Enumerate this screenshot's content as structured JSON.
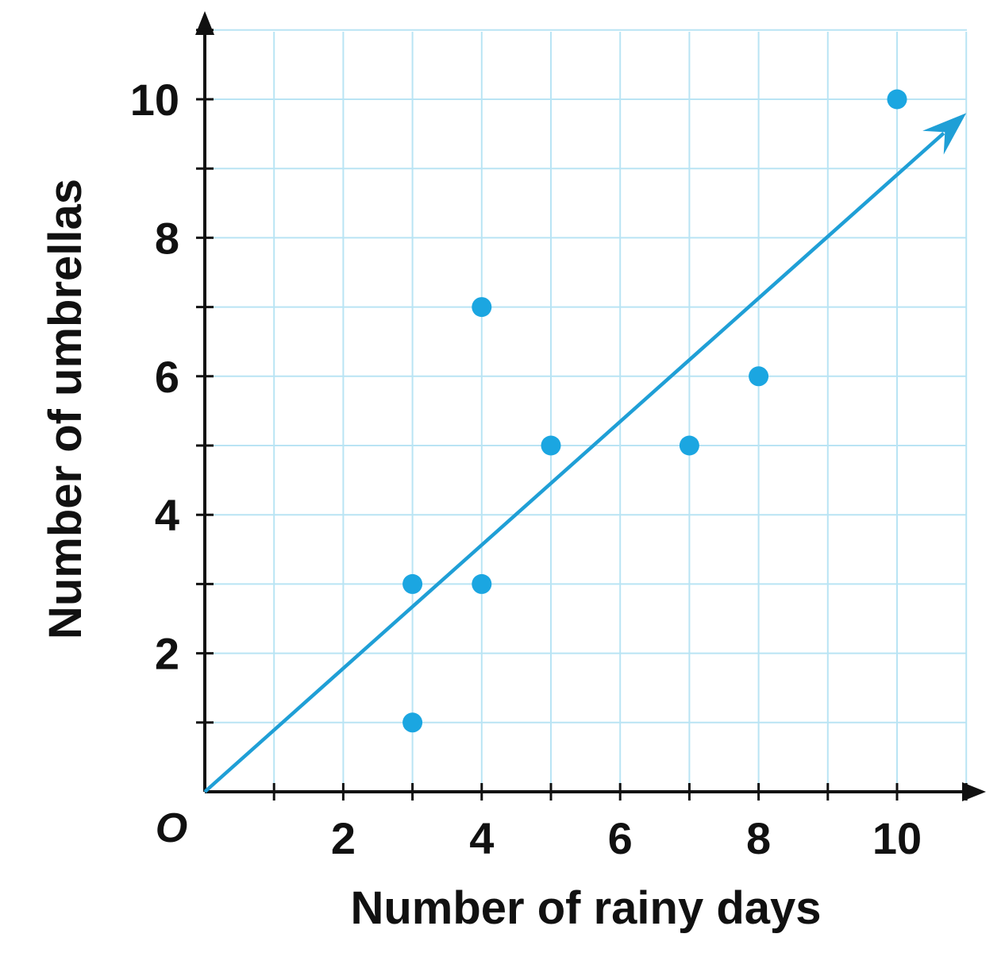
{
  "chart_data": {
    "type": "scatter",
    "title": "",
    "xlabel": "Number of rainy days",
    "ylabel": "Number of umbrellas",
    "origin_label": "O",
    "xlim": [
      0,
      11
    ],
    "ylim": [
      0,
      11
    ],
    "grid": true,
    "x_ticks": [
      2,
      4,
      6,
      8,
      10
    ],
    "y_ticks": [
      2,
      4,
      6,
      8,
      10
    ],
    "minor_ticks_every": 1,
    "point_color": "#1ba6e1",
    "line_color": "#1f9fd6",
    "grid_color": "#b9e4f4",
    "axis_color": "#111111",
    "points": [
      {
        "x": 3,
        "y": 1
      },
      {
        "x": 3,
        "y": 3
      },
      {
        "x": 4,
        "y": 3
      },
      {
        "x": 4,
        "y": 7
      },
      {
        "x": 5,
        "y": 5
      },
      {
        "x": 7,
        "y": 5
      },
      {
        "x": 8,
        "y": 6
      },
      {
        "x": 10,
        "y": 10
      }
    ],
    "trend_line": {
      "start": {
        "x": 0,
        "y": 0
      },
      "end": {
        "x": 11,
        "y": 9.8
      },
      "arrow": true
    }
  }
}
